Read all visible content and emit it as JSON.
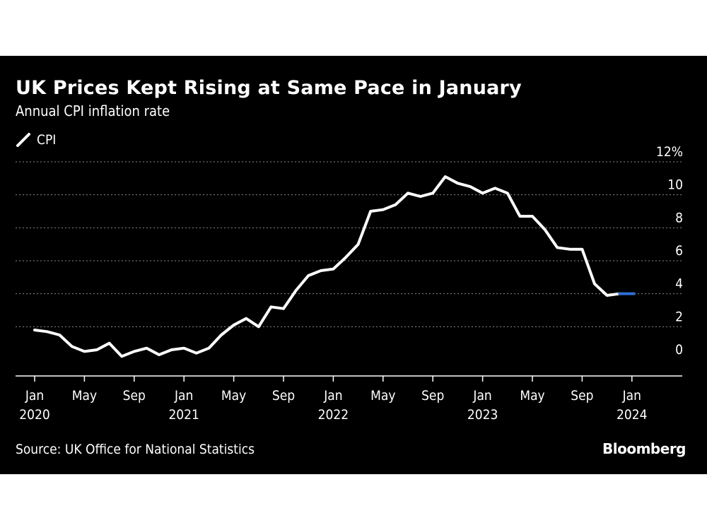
{
  "colors": {
    "background": "#000000",
    "line": "#ffffff",
    "highlight": "#2f6fd8",
    "grid": "#8a8a8a",
    "page": "#ffffff"
  },
  "title": "UK Prices Kept Rising at Same Pace in January",
  "subtitle": "Annual CPI inflation rate",
  "legend": {
    "label": "CPI",
    "icon": "line-swatch-icon"
  },
  "source": "Source: UK Office for National Statistics",
  "brand": "Bloomberg",
  "chart_data": {
    "type": "line",
    "title": "UK Prices Kept Rising at Same Pace in January",
    "subtitle": "Annual CPI inflation rate",
    "xlabel": "",
    "ylabel": "",
    "ylim": [
      -1,
      12
    ],
    "y_ticks": [
      0,
      2,
      4,
      6,
      8,
      10,
      12
    ],
    "y_tick_labels": [
      "0",
      "2",
      "4",
      "6",
      "8",
      "10",
      "12%"
    ],
    "x_tick_labels": [
      {
        "x": "2020-01",
        "lines": [
          "Jan",
          "2020"
        ]
      },
      {
        "x": "2020-05",
        "lines": [
          "May"
        ]
      },
      {
        "x": "2020-09",
        "lines": [
          "Sep"
        ]
      },
      {
        "x": "2021-01",
        "lines": [
          "Jan",
          "2021"
        ]
      },
      {
        "x": "2021-05",
        "lines": [
          "May"
        ]
      },
      {
        "x": "2021-09",
        "lines": [
          "Sep"
        ]
      },
      {
        "x": "2022-01",
        "lines": [
          "Jan",
          "2022"
        ]
      },
      {
        "x": "2022-05",
        "lines": [
          "May"
        ]
      },
      {
        "x": "2022-09",
        "lines": [
          "Sep"
        ]
      },
      {
        "x": "2023-01",
        "lines": [
          "Jan",
          "2023"
        ]
      },
      {
        "x": "2023-05",
        "lines": [
          "May"
        ]
      },
      {
        "x": "2023-09",
        "lines": [
          "Sep"
        ]
      },
      {
        "x": "2024-01",
        "lines": [
          "Jan",
          "2024"
        ]
      }
    ],
    "x_range": [
      "2019-12",
      "2024-03"
    ],
    "grid": "horizontal dotted",
    "legend_position": "top-left",
    "highlight_last_segment": true,
    "series": [
      {
        "name": "CPI",
        "x": [
          "2020-01",
          "2020-02",
          "2020-03",
          "2020-04",
          "2020-05",
          "2020-06",
          "2020-07",
          "2020-08",
          "2020-09",
          "2020-10",
          "2020-11",
          "2020-12",
          "2021-01",
          "2021-02",
          "2021-03",
          "2021-04",
          "2021-05",
          "2021-06",
          "2021-07",
          "2021-08",
          "2021-09",
          "2021-10",
          "2021-11",
          "2021-12",
          "2022-01",
          "2022-02",
          "2022-03",
          "2022-04",
          "2022-05",
          "2022-06",
          "2022-07",
          "2022-08",
          "2022-09",
          "2022-10",
          "2022-11",
          "2022-12",
          "2023-01",
          "2023-02",
          "2023-03",
          "2023-04",
          "2023-05",
          "2023-06",
          "2023-07",
          "2023-08",
          "2023-09",
          "2023-10",
          "2023-11",
          "2023-12",
          "2024-01"
        ],
        "values": [
          1.8,
          1.7,
          1.5,
          0.8,
          0.5,
          0.6,
          1.0,
          0.2,
          0.5,
          0.7,
          0.3,
          0.6,
          0.7,
          0.4,
          0.7,
          1.5,
          2.1,
          2.5,
          2.0,
          3.2,
          3.1,
          4.2,
          5.1,
          5.4,
          5.5,
          6.2,
          7.0,
          9.0,
          9.1,
          9.4,
          10.1,
          9.9,
          10.1,
          11.1,
          10.7,
          10.5,
          10.1,
          10.4,
          10.1,
          8.7,
          8.7,
          7.9,
          6.8,
          6.7,
          6.7,
          4.6,
          3.9,
          4.0,
          4.0
        ]
      }
    ]
  }
}
